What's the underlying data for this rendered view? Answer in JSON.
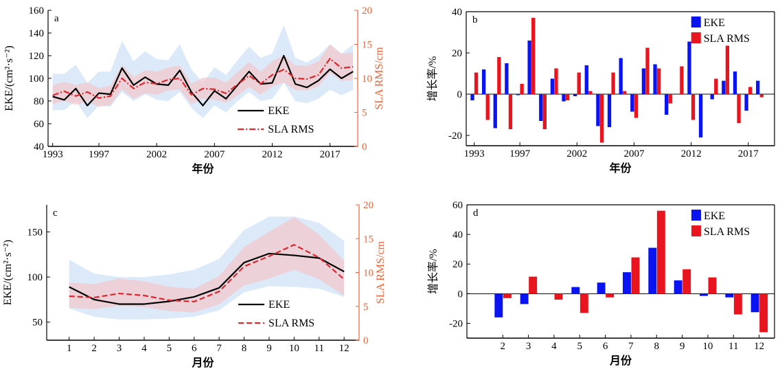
{
  "chart_data": [
    {
      "id": "a",
      "type": "line",
      "panel_label": "a",
      "xlabel": "年份",
      "ylabel": "EKE/(cm²·s⁻²)",
      "y2label": "SLA RMS/cm",
      "x": [
        1993,
        1994,
        1995,
        1996,
        1997,
        1998,
        1999,
        2000,
        2001,
        2002,
        2003,
        2004,
        2005,
        2006,
        2007,
        2008,
        2009,
        2010,
        2011,
        2012,
        2013,
        2014,
        2015,
        2016,
        2017,
        2018,
        2019
      ],
      "x_ticks": [
        1993,
        1997,
        2002,
        2007,
        2012,
        2017
      ],
      "xlim": [
        1992.6,
        2019.4
      ],
      "ylim": [
        40,
        160
      ],
      "y_ticks": [
        40,
        60,
        80,
        100,
        120,
        140,
        160
      ],
      "y2lim": [
        0,
        20
      ],
      "y2_ticks": [
        0,
        5,
        10,
        15,
        20
      ],
      "series": [
        {
          "name": "EKE",
          "axis": "left",
          "color": "#000000",
          "dash": "solid",
          "values": [
            84,
            81,
            91,
            76,
            87,
            86,
            109,
            94,
            101,
            95,
            94,
            107,
            88,
            76,
            89,
            82,
            94,
            106,
            95,
            96,
            120,
            95,
            92,
            98,
            108,
            100,
            106
          ],
          "band_upper": [
            104,
            104,
            112,
            96,
            106,
            106,
            133,
            115,
            124,
            117,
            116,
            130,
            108,
            96,
            110,
            103,
            116,
            128,
            118,
            122,
            147,
            118,
            114,
            120,
            130,
            122,
            130
          ],
          "band_lower": [
            72,
            72,
            80,
            65,
            76,
            75,
            88,
            80,
            86,
            81,
            80,
            88,
            74,
            65,
            76,
            70,
            80,
            88,
            80,
            82,
            96,
            80,
            78,
            82,
            90,
            85,
            90
          ],
          "band_color": "#cce0f5"
        },
        {
          "name": "SLA RMS",
          "axis": "right",
          "color": "#e0262b",
          "dash": "dashdot",
          "values": [
            7.5,
            8.1,
            7.4,
            8.0,
            7.1,
            7.4,
            10.0,
            8.5,
            9.4,
            9.2,
            9.8,
            10.0,
            7.6,
            8.5,
            8.4,
            7.8,
            9.1,
            10.4,
            9.2,
            10.5,
            11.3,
            10.0,
            9.9,
            10.5,
            12.9,
            11.5,
            11.7
          ],
          "band_upper": [
            9.0,
            9.5,
            9.0,
            9.4,
            8.6,
            8.9,
            12.0,
            10.2,
            11.2,
            11.0,
            11.6,
            11.9,
            9.2,
            10.1,
            10.1,
            9.4,
            10.9,
            12.4,
            11.0,
            12.5,
            13.4,
            11.9,
            11.8,
            12.5,
            15.0,
            13.6,
            13.8
          ],
          "band_lower": [
            6.2,
            6.7,
            6.1,
            6.6,
            5.8,
            6.1,
            8.4,
            7.0,
            7.8,
            7.6,
            8.2,
            8.4,
            6.2,
            7.0,
            6.9,
            6.4,
            7.5,
            8.7,
            7.6,
            8.8,
            9.4,
            8.3,
            8.2,
            8.8,
            10.8,
            9.6,
            9.8
          ],
          "band_color": "#f3c6cc"
        }
      ]
    },
    {
      "id": "b",
      "type": "bar",
      "panel_label": "b",
      "xlabel": "年份",
      "ylabel": "增长率/%",
      "x": [
        1993,
        1994,
        1995,
        1996,
        1997,
        1998,
        1999,
        2000,
        2001,
        2002,
        2003,
        2004,
        2005,
        2006,
        2007,
        2008,
        2009,
        2010,
        2011,
        2012,
        2013,
        2014,
        2015,
        2016,
        2017,
        2018,
        2019
      ],
      "x_ticks": [
        1993,
        1997,
        2002,
        2007,
        2012,
        2017
      ],
      "xlim": [
        1992.3,
        2019.3
      ],
      "ylim": [
        -25,
        40
      ],
      "y_ticks": [
        -20,
        0,
        20,
        40
      ],
      "series": [
        {
          "name": "EKE",
          "color": "#0a14f0",
          "values": [
            -3.0,
            12.0,
            -16.5,
            15.0,
            -0.5,
            26.0,
            -13.0,
            7.5,
            -3.5,
            -1.0,
            14.0,
            -15.5,
            -16.0,
            17.5,
            -8.5,
            12.5,
            14.5,
            -10.0,
            0,
            25.5,
            -21.0,
            -2.5,
            6.5,
            11.0,
            -8.0,
            6.5,
            0
          ]
        },
        {
          "name": "SLA RMS",
          "color": "#e8141e",
          "values": [
            10.5,
            -12.5,
            18.0,
            -17.0,
            5.0,
            37.0,
            -17.0,
            12.5,
            -3.0,
            10.5,
            1.5,
            -23.5,
            10.5,
            1.5,
            -11.5,
            22.5,
            12.5,
            -4.5,
            13.5,
            -12.5,
            0,
            7.5,
            23.5,
            -14.0,
            3.5,
            -1.5,
            0
          ]
        }
      ]
    },
    {
      "id": "c",
      "type": "line",
      "panel_label": "c",
      "xlabel": "月份",
      "ylabel": "EKE/(cm²·s⁻²)",
      "y2label": "SLA RMS/cm",
      "x": [
        1,
        2,
        3,
        4,
        5,
        6,
        7,
        8,
        9,
        10,
        11,
        12
      ],
      "x_ticks": [
        1,
        2,
        3,
        4,
        5,
        6,
        7,
        8,
        9,
        10,
        11,
        12
      ],
      "xlim": [
        0.1,
        12.6
      ],
      "ylim": [
        30,
        180
      ],
      "y_ticks": [
        50,
        100,
        150
      ],
      "y2lim": [
        0,
        20
      ],
      "y2_ticks": [
        0,
        5,
        10,
        15,
        20
      ],
      "series": [
        {
          "name": "EKE",
          "axis": "left",
          "color": "#000000",
          "dash": "solid",
          "values": [
            89,
            75,
            70,
            70,
            73,
            78,
            88,
            116,
            126,
            124,
            121,
            106
          ],
          "band_upper": [
            119,
            104,
            100,
            100,
            103,
            108,
            120,
            152,
            167,
            167,
            160,
            140
          ],
          "band_lower": [
            65,
            56,
            53,
            53,
            54,
            56,
            63,
            83,
            90,
            89,
            87,
            78
          ],
          "band_color": "#cce0f5"
        },
        {
          "name": "SLA RMS",
          "axis": "right",
          "color": "#e0262b",
          "dash": "dash",
          "values": [
            6.5,
            6.3,
            6.9,
            6.6,
            5.9,
            5.7,
            7.2,
            10.9,
            12.4,
            14.1,
            12.2,
            9.0
          ],
          "band_upper": [
            8.5,
            8.3,
            9.1,
            8.7,
            7.9,
            7.6,
            9.5,
            13.8,
            16.0,
            18.2,
            15.6,
            11.7
          ],
          "band_lower": [
            4.8,
            4.6,
            5.1,
            4.9,
            4.3,
            4.1,
            5.3,
            8.1,
            9.1,
            10.4,
            9.0,
            6.6
          ],
          "band_color": "#f3c6cc"
        }
      ]
    },
    {
      "id": "d",
      "type": "bar",
      "panel_label": "d",
      "xlabel": "月份",
      "ylabel": "增长率/%",
      "x": [
        1,
        2,
        3,
        4,
        5,
        6,
        7,
        8,
        9,
        10,
        11,
        12
      ],
      "x_ticks": [
        2,
        3,
        4,
        5,
        6,
        7,
        8,
        9,
        10,
        11,
        12
      ],
      "xlim": [
        0.6,
        12.6
      ],
      "ylim": [
        -30,
        60
      ],
      "y_ticks": [
        -20,
        0,
        20,
        40,
        60
      ],
      "series": [
        {
          "name": "EKE",
          "color": "#0a14f0",
          "values": [
            0,
            -16.0,
            -7.0,
            0,
            4.5,
            7.5,
            14.5,
            31.0,
            9.0,
            -1.5,
            -2.5,
            -12.5
          ]
        },
        {
          "name": "SLA RMS",
          "color": "#e8141e",
          "values": [
            0,
            -3.0,
            11.5,
            -4.0,
            -13.0,
            -2.5,
            24.5,
            56.0,
            16.5,
            11.0,
            -14.0,
            -26.0
          ]
        }
      ]
    }
  ]
}
